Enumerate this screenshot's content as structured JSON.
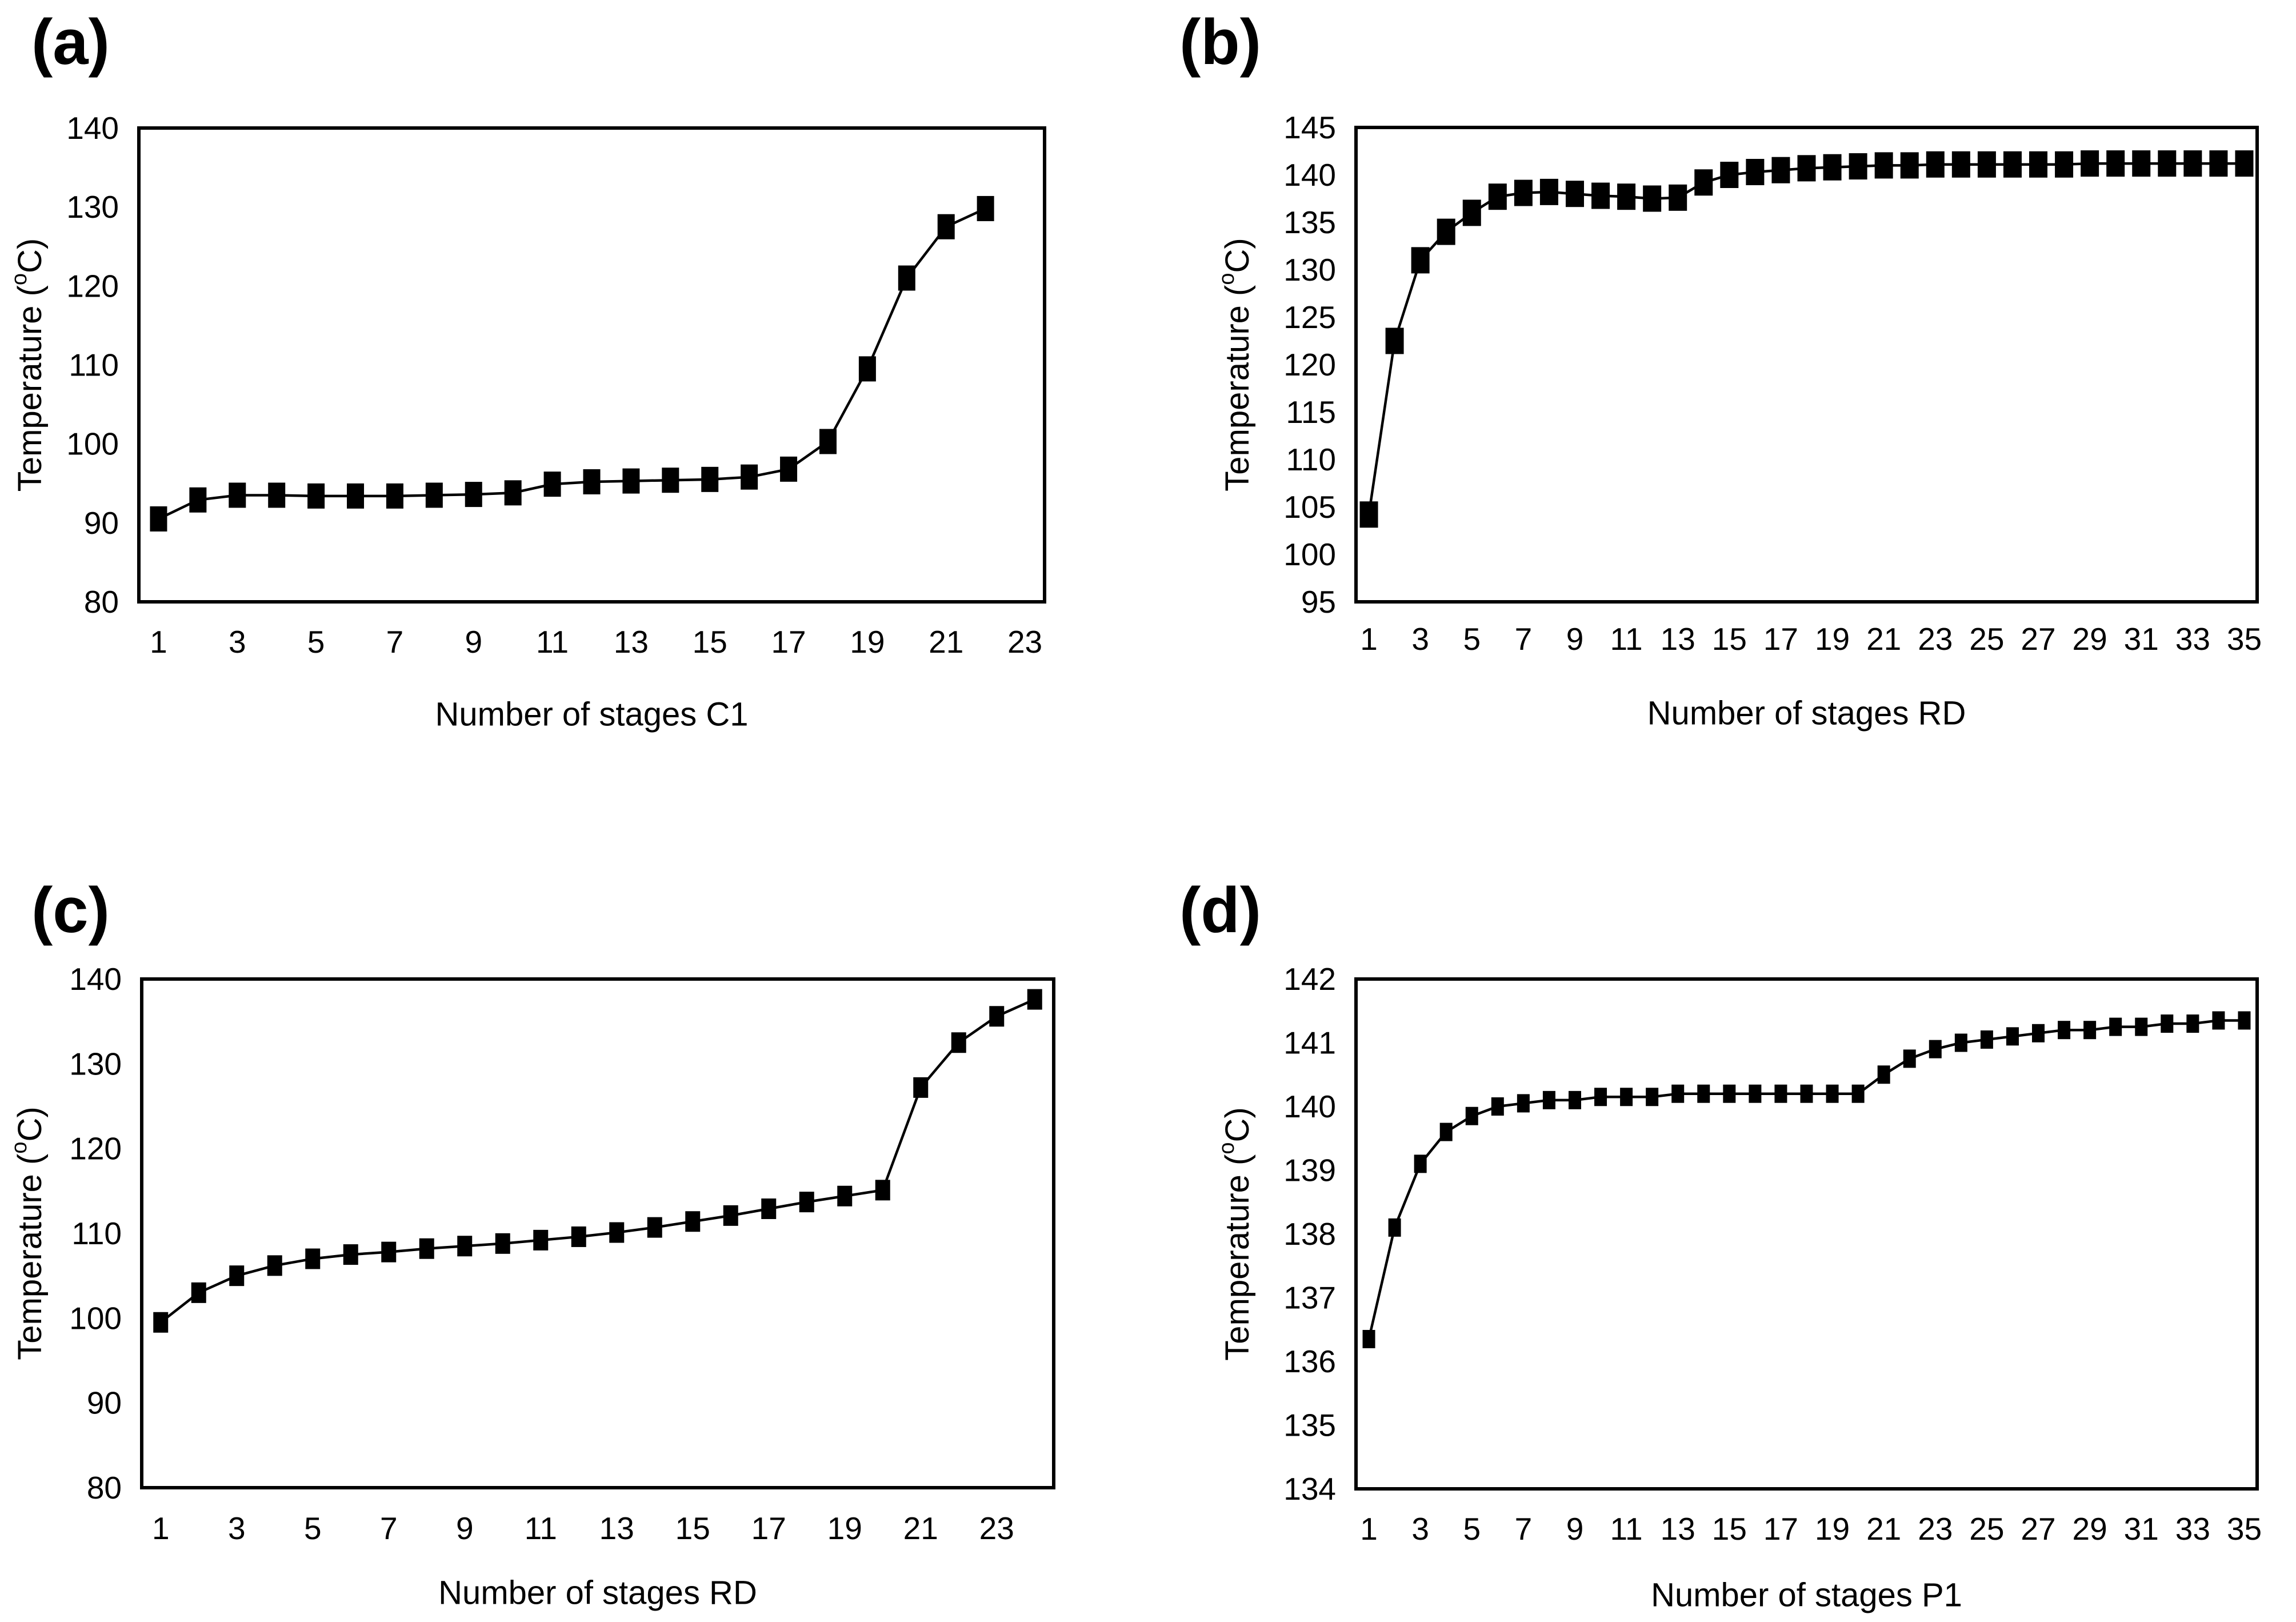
{
  "page": {
    "background": "#ffffff",
    "ink": "#000000"
  },
  "panels": [
    {
      "label": "(a)"
    },
    {
      "label": "(b)"
    },
    {
      "label": "(c)"
    },
    {
      "label": "(d)"
    }
  ],
  "chart_data": [
    {
      "type": "line",
      "panel": "(a)",
      "title": "",
      "xlabel": "Number of stages C1",
      "ylabel": "Temperature (°C)",
      "legend": "none",
      "grid": false,
      "marker": "filled-square",
      "line_color": "#000000",
      "xlim_categories": 23,
      "xticks": [
        1,
        3,
        5,
        7,
        9,
        11,
        13,
        15,
        17,
        19,
        21,
        23
      ],
      "ylim": [
        80,
        140
      ],
      "ytick_step": 10,
      "yticks": [
        80,
        90,
        100,
        110,
        120,
        130,
        140
      ],
      "x": [
        1,
        2,
        3,
        4,
        5,
        6,
        7,
        8,
        9,
        10,
        11,
        12,
        13,
        14,
        15,
        16,
        17,
        18,
        19,
        20,
        21,
        22
      ],
      "y": [
        90.5,
        92.9,
        93.5,
        93.5,
        93.4,
        93.4,
        93.4,
        93.5,
        93.6,
        93.8,
        94.9,
        95.2,
        95.3,
        95.4,
        95.5,
        95.8,
        96.8,
        100.3,
        109.5,
        121.0,
        127.5,
        129.8
      ]
    },
    {
      "type": "line",
      "panel": "(b)",
      "title": "",
      "xlabel": "Number of stages RD",
      "ylabel": "Temperature (°C)",
      "legend": "none",
      "grid": false,
      "marker": "filled-square",
      "line_color": "#000000",
      "xlim_categories": 35,
      "xticks": [
        1,
        3,
        5,
        7,
        9,
        11,
        13,
        15,
        17,
        19,
        21,
        23,
        25,
        27,
        29,
        31,
        33,
        35
      ],
      "ylim": [
        95,
        145
      ],
      "ytick_step": 5,
      "yticks": [
        95,
        100,
        105,
        110,
        115,
        120,
        125,
        130,
        135,
        140,
        145
      ],
      "x": [
        1,
        2,
        3,
        4,
        5,
        6,
        7,
        8,
        9,
        10,
        11,
        12,
        13,
        14,
        15,
        16,
        17,
        18,
        19,
        20,
        21,
        22,
        23,
        24,
        25,
        26,
        27,
        28,
        29,
        30,
        31,
        32,
        33,
        34,
        35
      ],
      "y": [
        104.2,
        122.5,
        131.0,
        134.0,
        136.0,
        137.7,
        138.1,
        138.2,
        138.0,
        137.8,
        137.7,
        137.5,
        137.6,
        139.2,
        140.0,
        140.3,
        140.5,
        140.7,
        140.8,
        140.9,
        141.0,
        141.0,
        141.1,
        141.1,
        141.1,
        141.1,
        141.1,
        141.1,
        141.2,
        141.2,
        141.2,
        141.2,
        141.2,
        141.2,
        141.2
      ]
    },
    {
      "type": "line",
      "panel": "(c)",
      "title": "",
      "xlabel": "Number of stages RD",
      "ylabel": "Temperature (°C)",
      "legend": "none",
      "grid": false,
      "marker": "filled-square",
      "line_color": "#000000",
      "xlim_categories": 24,
      "xticks": [
        1,
        3,
        5,
        7,
        9,
        11,
        13,
        15,
        17,
        19,
        21,
        23
      ],
      "ylim": [
        80,
        140
      ],
      "ytick_step": 10,
      "yticks": [
        80,
        90,
        100,
        110,
        120,
        130,
        140
      ],
      "x": [
        1,
        2,
        3,
        4,
        5,
        6,
        7,
        8,
        9,
        10,
        11,
        12,
        13,
        14,
        15,
        16,
        17,
        18,
        19,
        20,
        21,
        22,
        23,
        24
      ],
      "y": [
        99.5,
        103.0,
        105.0,
        106.2,
        107.0,
        107.5,
        107.8,
        108.2,
        108.5,
        108.8,
        109.2,
        109.6,
        110.1,
        110.7,
        111.4,
        112.1,
        112.9,
        113.7,
        114.4,
        115.1,
        127.2,
        132.5,
        135.6,
        137.6
      ]
    },
    {
      "type": "line",
      "panel": "(d)",
      "title": "",
      "xlabel": "Number of stages P1",
      "ylabel": "Temperature (°C)",
      "legend": "none",
      "grid": false,
      "marker": "filled-square",
      "line_color": "#000000",
      "xlim_categories": 35,
      "xticks": [
        1,
        3,
        5,
        7,
        9,
        11,
        13,
        15,
        17,
        19,
        21,
        23,
        25,
        27,
        29,
        31,
        33,
        35
      ],
      "ylim": [
        134,
        142
      ],
      "ytick_step": 1,
      "yticks": [
        134,
        135,
        136,
        137,
        138,
        139,
        140,
        141,
        142
      ],
      "x": [
        1,
        2,
        3,
        4,
        5,
        6,
        7,
        8,
        9,
        10,
        11,
        12,
        13,
        14,
        15,
        16,
        17,
        18,
        19,
        20,
        21,
        22,
        23,
        24,
        25,
        26,
        27,
        28,
        29,
        30,
        31,
        32,
        33,
        34,
        35
      ],
      "y": [
        136.35,
        138.1,
        139.1,
        139.6,
        139.85,
        140.0,
        140.05,
        140.1,
        140.1,
        140.15,
        140.15,
        140.15,
        140.2,
        140.2,
        140.2,
        140.2,
        140.2,
        140.2,
        140.2,
        140.2,
        140.5,
        140.75,
        140.9,
        141.0,
        141.05,
        141.1,
        141.15,
        141.2,
        141.2,
        141.25,
        141.25,
        141.3,
        141.3,
        141.35,
        141.35
      ]
    }
  ]
}
